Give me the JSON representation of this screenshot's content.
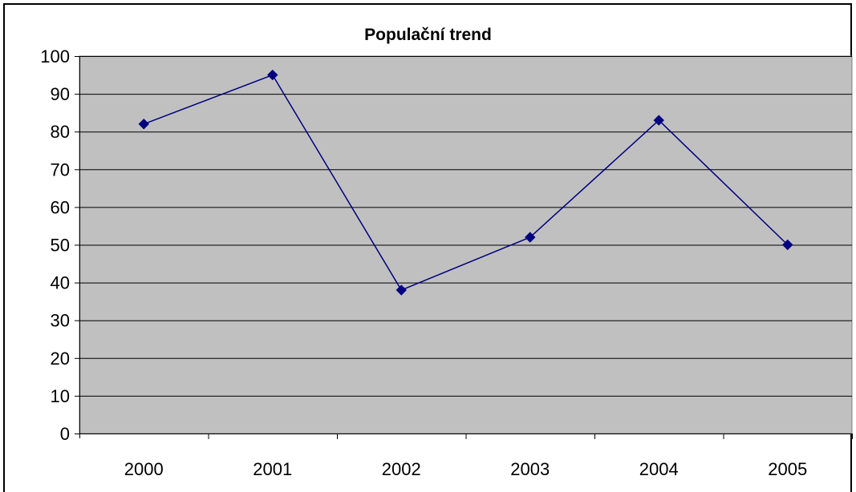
{
  "chart_data": {
    "type": "line",
    "title": "Populační trend",
    "xlabel": "",
    "ylabel": "",
    "categories": [
      "2000",
      "2001",
      "2002",
      "2003",
      "2004",
      "2005"
    ],
    "series": [
      {
        "values": [
          82,
          95,
          38,
          52,
          83,
          50
        ],
        "color": "#000080",
        "marker": "diamond"
      }
    ],
    "ylim": [
      0,
      100
    ],
    "yticks": [
      "0",
      "10",
      "20",
      "30",
      "40",
      "50",
      "60",
      "70",
      "80",
      "90",
      "100"
    ],
    "grid": true,
    "legend": "none",
    "plot_background": "#c0c0c0",
    "gridline_color": "#000000"
  }
}
